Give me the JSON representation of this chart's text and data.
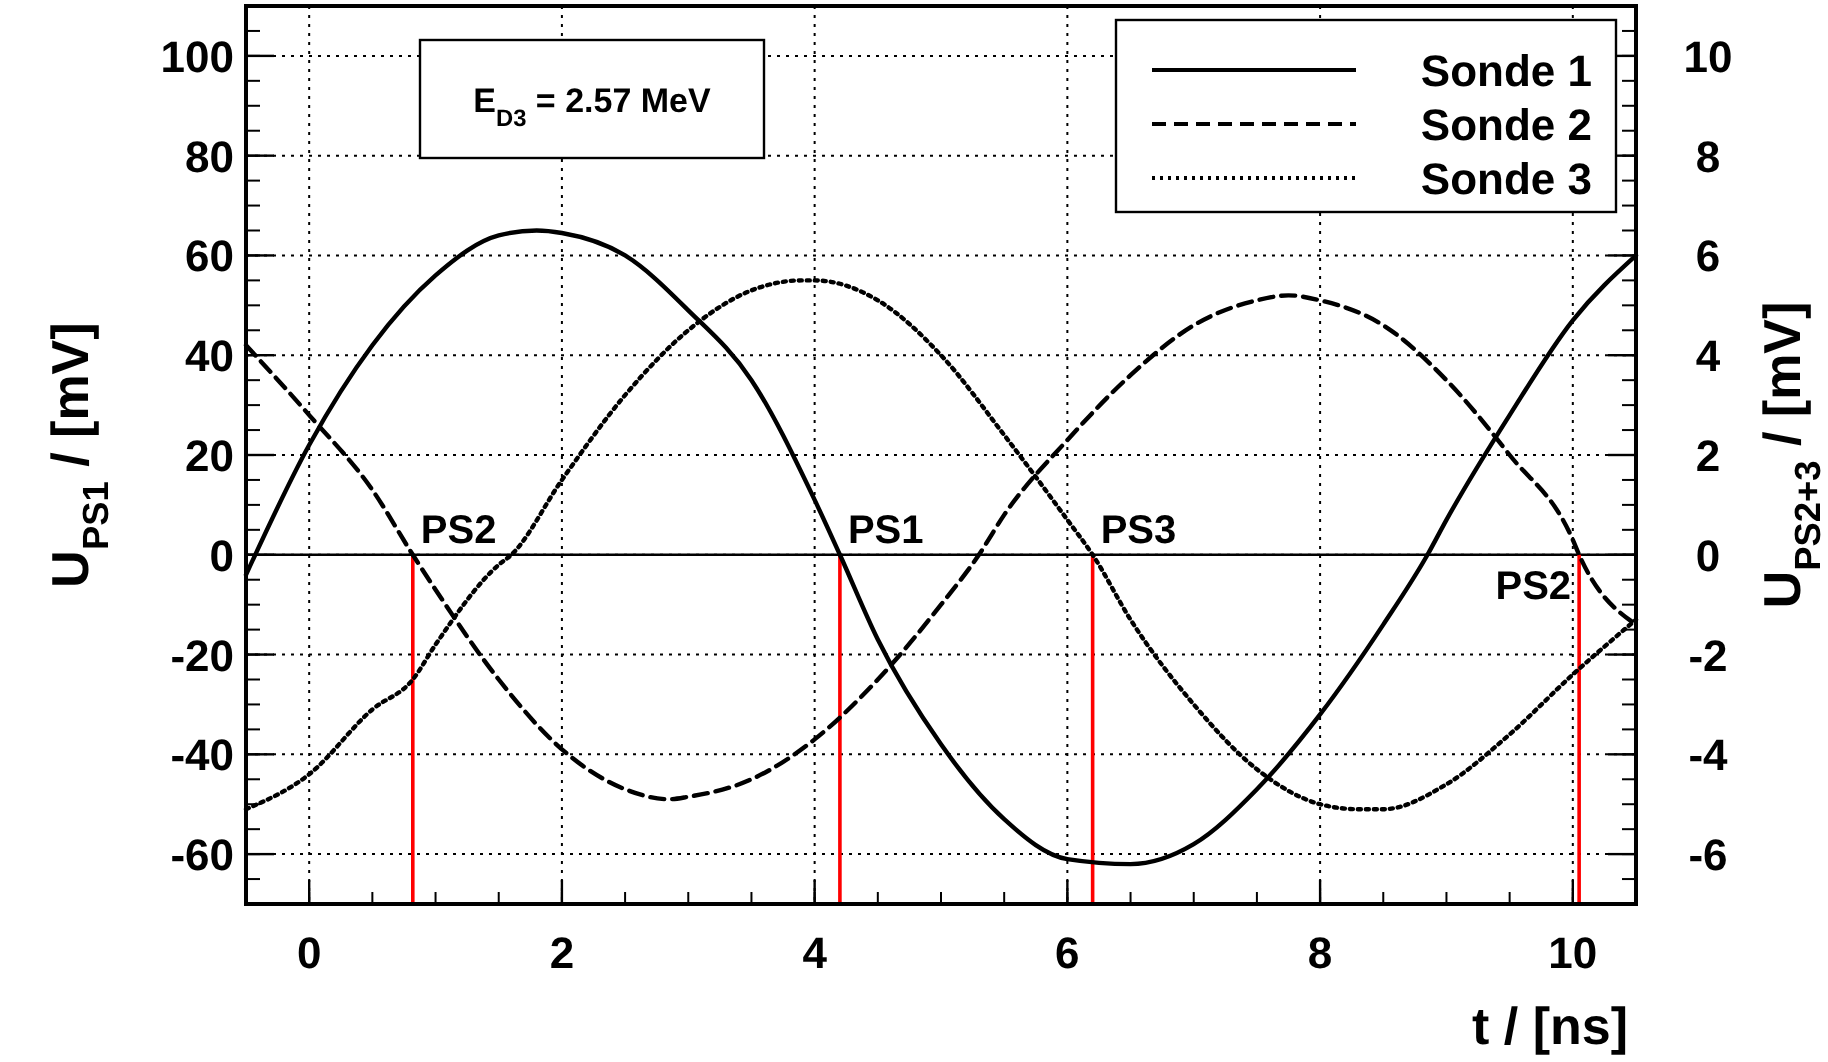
{
  "chart_data": {
    "type": "line",
    "xlabel": "t / [ns]",
    "ylabel": "U$_{PS1}$ / [mV]",
    "y2label": "U$_{PS2+3}$ / [mV]",
    "annotations": [
      "E$_{D3}$ = 2.57 MeV"
    ],
    "xlim": [
      -0.5,
      10.5
    ],
    "xticks": [
      0,
      2,
      4,
      6,
      8,
      10
    ],
    "ylim": [
      -70,
      110
    ],
    "yticks": [
      -60,
      -40,
      -20,
      0,
      20,
      40,
      60,
      80,
      100
    ],
    "y2lim": [
      -7,
      11
    ],
    "y2ticks": [
      -6,
      -4,
      -2,
      0,
      2,
      4,
      6,
      8,
      10
    ],
    "grid": true,
    "legend": "top right",
    "ref_lines": [
      {
        "axis": "y",
        "value": 0,
        "color": "#000000"
      },
      {
        "axis": "x",
        "value": 0.82,
        "label": "PS2",
        "color": "#ff0000"
      },
      {
        "axis": "x",
        "value": 4.2,
        "label": "PS1",
        "color": "#ff0000"
      },
      {
        "axis": "x",
        "value": 6.2,
        "label": "PS3",
        "color": "#ff0000"
      },
      {
        "axis": "x",
        "value": 10.05,
        "label": "PS2",
        "color": "#ff0000"
      }
    ],
    "series": [
      {
        "name": "Sonde 1",
        "color": "#000000",
        "line_style": "solid",
        "x": [
          -0.5,
          0,
          0.5,
          1,
          1.5,
          1.8,
          2,
          2.5,
          3,
          3.5,
          4,
          4.2,
          4.5,
          5,
          5.5,
          6,
          6.5,
          7,
          7.5,
          8,
          8.5,
          8.85,
          9,
          9.5,
          10,
          10.5
        ],
        "values": [
          -4,
          22,
          42,
          56,
          64,
          65,
          64.5,
          60,
          49,
          35,
          11,
          0,
          -17,
          -38,
          -53,
          -61,
          -62,
          -58,
          -47,
          -32,
          -14,
          0,
          7,
          28,
          47,
          60
        ]
      },
      {
        "name": "Sonde 2",
        "color": "#000000",
        "line_style": "dashed",
        "axis": "y2",
        "x": [
          -0.5,
          0,
          0.5,
          0.82,
          1,
          1.5,
          2,
          2.5,
          2.85,
          3,
          3.5,
          4,
          4.5,
          5,
          5.3,
          5.5,
          6,
          6.5,
          7,
          7.5,
          7.75,
          8,
          8.5,
          9,
          9.5,
          10,
          10.05,
          10.5
        ],
        "values": [
          4.2,
          2.8,
          1.3,
          0,
          -0.7,
          -2.5,
          -3.9,
          -4.7,
          -4.9,
          -4.85,
          -4.5,
          -3.7,
          -2.5,
          -1.0,
          0,
          0.8,
          2.3,
          3.6,
          4.6,
          5.1,
          5.2,
          5.1,
          4.6,
          3.5,
          2.0,
          0.3,
          0,
          -1.4
        ]
      },
      {
        "name": "Sonde 3",
        "color": "#000000",
        "line_style": "dotted",
        "axis": "y2",
        "x": [
          -0.5,
          0,
          0.5,
          0.82,
          1,
          1.5,
          1.6,
          2,
          2.5,
          3,
          3.5,
          3.9,
          4,
          4.5,
          5,
          5.5,
          6,
          6.2,
          6.5,
          7,
          7.5,
          8,
          8.3,
          8.5,
          9,
          9.5,
          10,
          10.5
        ],
        "values": [
          -5.1,
          -4.4,
          -3.1,
          -2.5,
          -1.8,
          -0.2,
          0,
          1.5,
          3.2,
          4.5,
          5.3,
          5.5,
          5.5,
          5.1,
          4.0,
          2.4,
          0.7,
          0,
          -1.3,
          -3.0,
          -4.3,
          -5.0,
          -5.1,
          -5.1,
          -4.6,
          -3.6,
          -2.4,
          -1.3
        ]
      }
    ]
  }
}
